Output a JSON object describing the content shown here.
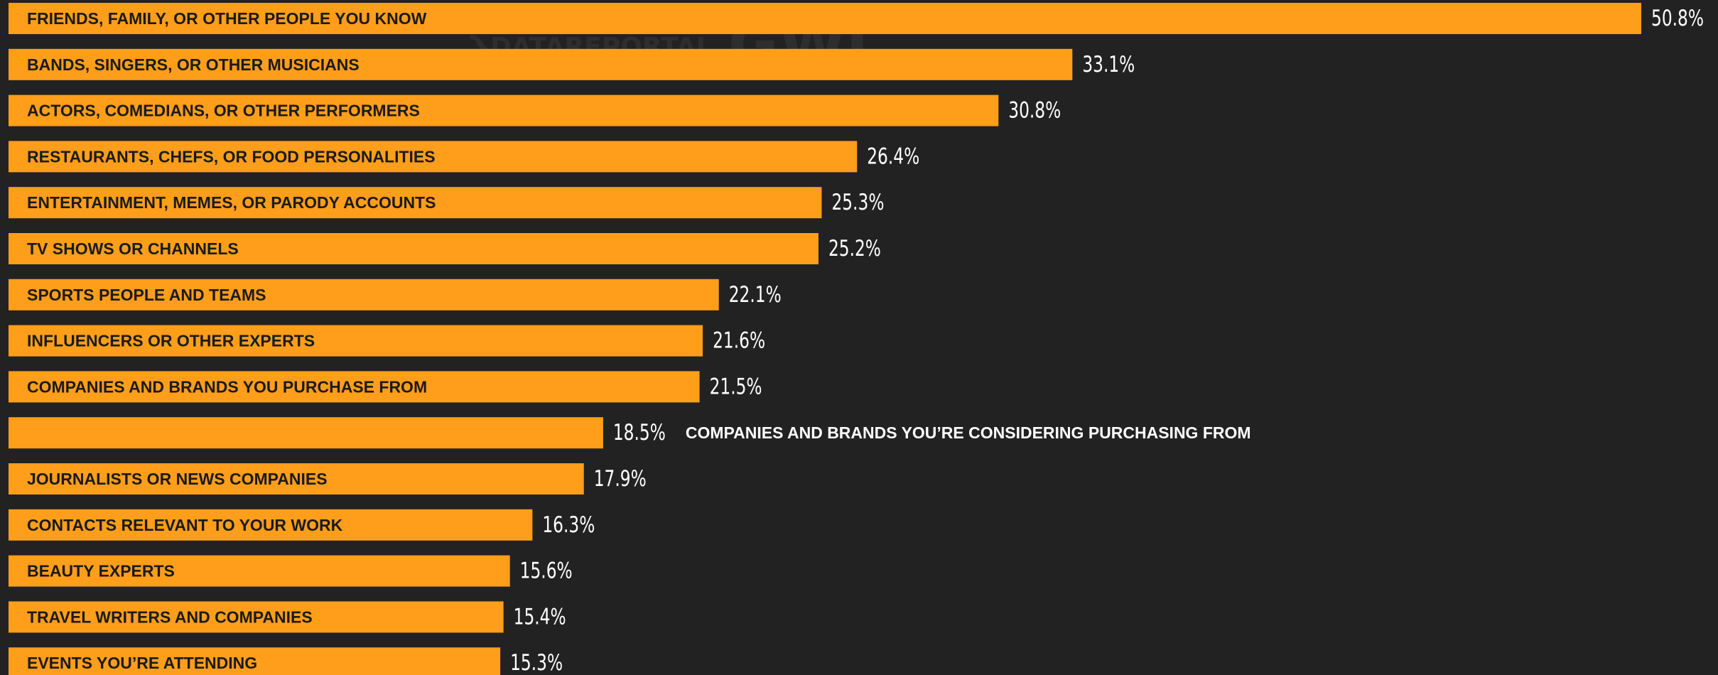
{
  "colors": {
    "background": "#222222",
    "bar": "#FF9E1B",
    "inside_label": "#1a1a1a",
    "outside_label": "#ffffff",
    "value_label": "#ffffff",
    "watermark": "#2e2e2e"
  },
  "watermark": {
    "brand_1": "DATAREPORTAL",
    "brand_2": "GWI."
  },
  "chart_data": {
    "type": "bar",
    "orientation": "horizontal",
    "unit": "%",
    "xlim": [
      0,
      50.8
    ],
    "categories": [
      "FRIENDS, FAMILY, OR OTHER PEOPLE YOU KNOW",
      "BANDS, SINGERS, OR OTHER MUSICIANS",
      "ACTORS, COMEDIANS, OR OTHER PERFORMERS",
      "RESTAURANTS, CHEFS, OR FOOD PERSONALITIES",
      "ENTERTAINMENT, MEMES, OR PARODY ACCOUNTS",
      "TV SHOWS OR CHANNELS",
      "SPORTS PEOPLE AND TEAMS",
      "INFLUENCERS OR OTHER EXPERTS",
      "COMPANIES AND BRANDS YOU PURCHASE FROM",
      "COMPANIES AND BRANDS YOU’RE CONSIDERING PURCHASING FROM",
      "JOURNALISTS OR NEWS COMPANIES",
      "CONTACTS RELEVANT TO YOUR WORK",
      "BEAUTY EXPERTS",
      "TRAVEL WRITERS AND COMPANIES",
      "EVENTS YOU’RE ATTENDING"
    ],
    "values": [
      50.8,
      33.1,
      30.8,
      26.4,
      25.3,
      25.2,
      22.1,
      21.6,
      21.5,
      18.5,
      17.9,
      16.3,
      15.6,
      15.4,
      15.3
    ],
    "value_labels": [
      "50.8%",
      "33.1%",
      "30.8%",
      "26.4%",
      "25.3%",
      "25.2%",
      "22.1%",
      "21.6%",
      "21.5%",
      "18.5%",
      "17.9%",
      "16.3%",
      "15.6%",
      "15.4%",
      "15.3%"
    ],
    "label_outside": [
      false,
      false,
      false,
      false,
      false,
      false,
      false,
      false,
      false,
      true,
      false,
      false,
      false,
      false,
      false
    ]
  }
}
